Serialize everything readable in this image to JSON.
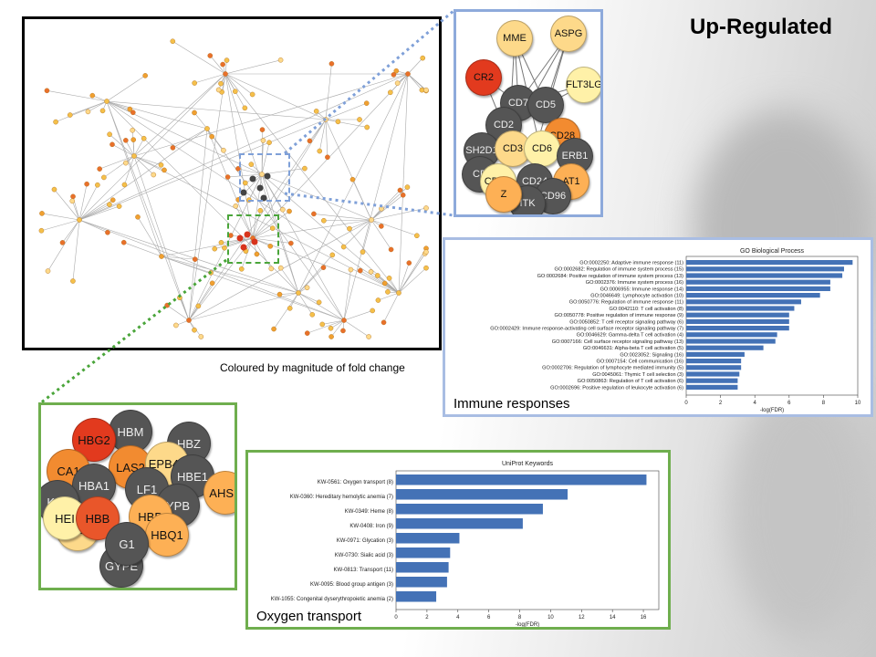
{
  "header": {
    "title": "Up-Regulated"
  },
  "network": {
    "caption": "Coloured by magnitude of fold change"
  },
  "immune_zoom": {
    "nodes": [
      {
        "label": "MME",
        "color": "#fdd98a"
      },
      {
        "label": "ASPG",
        "color": "#fdd98a"
      },
      {
        "label": "CR2",
        "color": "#e23a1e"
      },
      {
        "label": "FLT3LG",
        "color": "#fff1a8"
      },
      {
        "label": "CD7",
        "color": "#555555"
      },
      {
        "label": "CD5",
        "color": "#555555"
      },
      {
        "label": "CD2",
        "color": "#555555"
      },
      {
        "label": "CD28",
        "color": "#f28b30"
      },
      {
        "label": "SH2D1",
        "color": "#555555"
      },
      {
        "label": "CD3",
        "color": "#fdd98a"
      },
      {
        "label": "CD6",
        "color": "#fff1a8"
      },
      {
        "label": "ERB1",
        "color": "#555555"
      },
      {
        "label": "CD",
        "color": "#555555"
      },
      {
        "label": "CD3G",
        "color": "#fff1a8"
      },
      {
        "label": "CD24",
        "color": "#555555"
      },
      {
        "label": "AT1",
        "color": "#fdb055"
      },
      {
        "label": "CD96",
        "color": "#555555"
      },
      {
        "label": "ITK",
        "color": "#555555"
      },
      {
        "label": "Z",
        "color": "#fdb055"
      }
    ]
  },
  "oxygen_zoom": {
    "nodes": [
      {
        "label": "HBM",
        "color": "#555555"
      },
      {
        "label": "HBG2",
        "color": "#e23a1e"
      },
      {
        "label": "HBZ",
        "color": "#555555"
      },
      {
        "label": "CA1",
        "color": "#f28b30"
      },
      {
        "label": "LAS2",
        "color": "#f28b30"
      },
      {
        "label": "EPB42",
        "color": "#fdd98a"
      },
      {
        "label": "HBE1",
        "color": "#555555"
      },
      {
        "label": "HBA1",
        "color": "#555555"
      },
      {
        "label": "AHSP",
        "color": "#fdb055"
      },
      {
        "label": "LF1",
        "color": "#555555"
      },
      {
        "label": "YPB",
        "color": "#555555"
      },
      {
        "label": "K37",
        "color": "#555555"
      },
      {
        "label": "SLC4",
        "color": "#fdd98a"
      },
      {
        "label": "HEI",
        "color": "#fff1a8"
      },
      {
        "label": "HBB",
        "color": "#e9562a"
      },
      {
        "label": "HBD",
        "color": "#fdb055"
      },
      {
        "label": "HBQ1",
        "color": "#fdb055"
      },
      {
        "label": "GYPE",
        "color": "#555555"
      },
      {
        "label": "G1",
        "color": "#555555"
      }
    ]
  },
  "immune_panel": {
    "label": "Immune responses",
    "chart_data": {
      "type": "bar",
      "orientation": "horizontal",
      "title": "GO Biological Process",
      "xlabel": "-log(FDR)",
      "ylabel": "",
      "xlim": [
        0,
        10
      ],
      "xticks": [
        "0",
        "2",
        "4",
        "6",
        "8",
        "10"
      ],
      "categories": [
        "GO:0002250: Adaptive immune response (11)",
        "GO:0002682: Regulation of immune system process (15)",
        "GO:0002684: Positive regulation of immune system process (13)",
        "GO:0002376: Immune system process (16)",
        "GO:0006955: Immune response (14)",
        "GO:0046649: Lymphocyte activation (10)",
        "GO:0050776: Regulation of immune response (11)",
        "GO:0042110: T cell activation (8)",
        "GO:0050778: Positive regulation of immune response (9)",
        "GO:0050852: T cell receptor signaling pathway (6)",
        "GO:0002429: Immune response-activating cell surface receptor signaling pathway (7)",
        "GO:0046629: Gamma-delta T cell activation (4)",
        "GO:0007166: Cell surface receptor signaling pathway (13)",
        "GO:0046631: Alpha-beta T cell activation (5)",
        "GO:0023052: Signaling (16)",
        "GO:0007154: Cell communication (16)",
        "GO:0002706: Regulation of lymphocyte mediated immunity (5)",
        "GO:0045061: Thymic T cell selection (3)",
        "GO:0050863: Regulation of T cell activation (6)",
        "GO:0002696: Positive regulation of leukocyte activation (6)"
      ],
      "values": [
        9.7,
        9.2,
        9.1,
        8.4,
        8.4,
        7.8,
        6.7,
        6.3,
        6.0,
        6.0,
        6.0,
        5.3,
        5.2,
        4.5,
        3.4,
        3.2,
        3.2,
        3.1,
        3.0,
        3.0
      ],
      "bar_color": "#4472b6"
    }
  },
  "oxygen_panel": {
    "label": "Oxygen transport",
    "chart_data": {
      "type": "bar",
      "orientation": "horizontal",
      "title": "UniProt Keywords",
      "xlabel": "-log(FDR)",
      "ylabel": "",
      "xlim": [
        0,
        17
      ],
      "xticks": [
        "0",
        "2",
        "4",
        "6",
        "8",
        "10",
        "12",
        "14",
        "16"
      ],
      "categories": [
        "KW-0561: Oxygen transport (8)",
        "KW-0360: Hereditary hemolytic anemia (7)",
        "KW-0349: Heme (8)",
        "KW-0408: Iron (9)",
        "KW-0971: Glycation (3)",
        "KW-0730: Sialic acid (3)",
        "KW-0813: Transport (11)",
        "KW-0095: Blood group antigen (3)",
        "KW-1055: Congenital dyserythropoietic anemia (2)"
      ],
      "values": [
        16.2,
        11.1,
        9.5,
        8.2,
        4.1,
        3.5,
        3.4,
        3.3,
        2.6
      ],
      "bar_color": "#4472b6"
    }
  }
}
